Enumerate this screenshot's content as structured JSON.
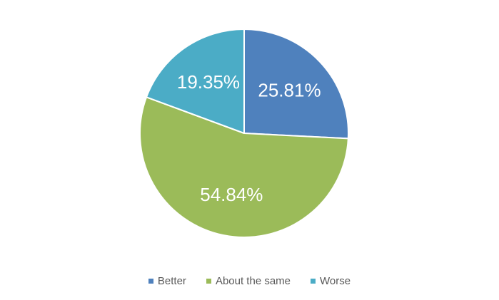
{
  "chart_data": {
    "type": "pie",
    "categories": [
      "Better",
      "About the same",
      "Worse"
    ],
    "values": [
      25.81,
      54.84,
      19.35
    ],
    "labels": [
      "25.81%",
      "54.84%",
      "19.35%"
    ],
    "colors": [
      "#4f81bd",
      "#9bbb59",
      "#4bacc6"
    ],
    "start_angle_deg": 0,
    "direction": "clockwise",
    "legend_position": "bottom",
    "title": ""
  }
}
